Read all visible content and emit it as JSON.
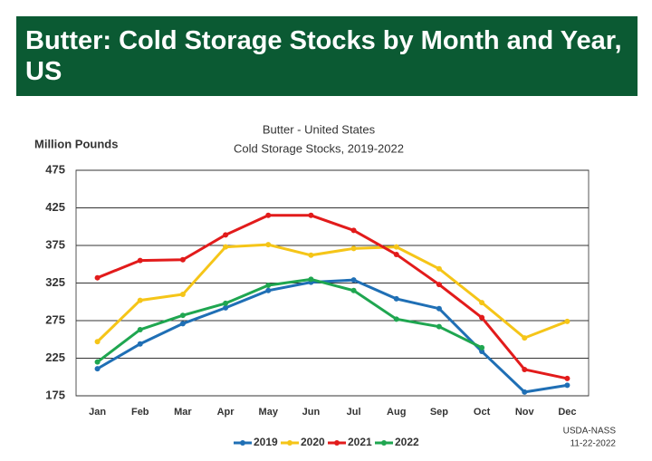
{
  "header": {
    "title": "Butter: Cold Storage Stocks by Month and Year, US"
  },
  "chart_data": {
    "type": "line",
    "title": "Butter - United States",
    "subtitle": "Cold Storage Stocks, 2019-2022",
    "y_label": "Million Pounds",
    "source": "USDA-NASS",
    "date": "11-22-2022",
    "categories": [
      "Jan",
      "Feb",
      "Mar",
      "Apr",
      "May",
      "Jun",
      "Jul",
      "Aug",
      "Sep",
      "Oct",
      "Nov",
      "Dec"
    ],
    "series": [
      {
        "name": "2019",
        "color": "#1f6fb5",
        "values": [
          211,
          244,
          271,
          292,
          315,
          326,
          329,
          304,
          291,
          234,
          180,
          189
        ]
      },
      {
        "name": "2020",
        "color": "#f5c518",
        "values": [
          247,
          302,
          310,
          373,
          376,
          362,
          371,
          373,
          344,
          299,
          252,
          274
        ]
      },
      {
        "name": "2021",
        "color": "#e21b1b",
        "values": [
          332,
          355,
          356,
          389,
          415,
          415,
          395,
          363,
          323,
          279,
          210,
          198
        ]
      },
      {
        "name": "2022",
        "color": "#1fa650",
        "values": [
          220,
          263,
          282,
          298,
          322,
          330,
          315,
          277,
          267,
          239,
          null,
          null
        ]
      }
    ],
    "ylim": [
      175,
      475
    ],
    "yticks": [
      175,
      225,
      275,
      325,
      375,
      425,
      475
    ],
    "grid": true
  }
}
